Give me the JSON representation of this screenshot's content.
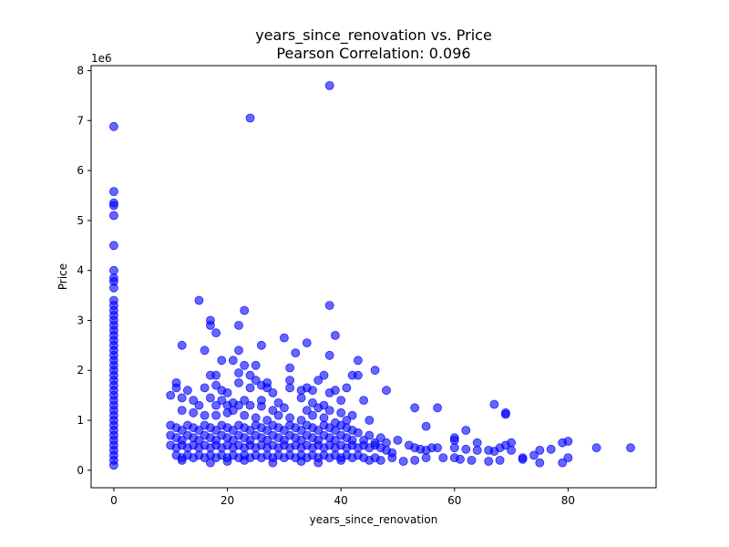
{
  "chart_data": {
    "type": "scatter",
    "title": "years_since_renovation vs. Price",
    "subtitle": "Pearson Correlation: 0.096",
    "xlabel": "years_since_renovation",
    "ylabel": "Price",
    "y_multiplier_label": "1e6",
    "xlim": [
      -4,
      95.5
    ],
    "ylim": [
      -0.35,
      8.1
    ],
    "x_ticks": [
      0,
      20,
      40,
      60,
      80
    ],
    "y_ticks": [
      0,
      1,
      2,
      3,
      4,
      5,
      6,
      7,
      8
    ],
    "grid": false,
    "legend": "none",
    "marker_color": "#0000ff",
    "marker_opacity": 0.6,
    "points": [
      [
        0,
        6.88
      ],
      [
        0,
        5.58
      ],
      [
        0,
        5.35
      ],
      [
        0,
        5.3
      ],
      [
        0,
        5.1
      ],
      [
        0,
        4.5
      ],
      [
        0,
        4.0
      ],
      [
        0,
        3.85
      ],
      [
        0,
        3.78
      ],
      [
        0,
        3.65
      ],
      [
        0,
        3.4
      ],
      [
        0,
        3.3
      ],
      [
        0,
        3.2
      ],
      [
        0,
        3.1
      ],
      [
        0,
        3.0
      ],
      [
        0,
        2.9
      ],
      [
        0,
        2.8
      ],
      [
        0,
        2.7
      ],
      [
        0,
        2.6
      ],
      [
        0,
        2.5
      ],
      [
        0,
        2.4
      ],
      [
        0,
        2.3
      ],
      [
        0,
        2.2
      ],
      [
        0,
        2.1
      ],
      [
        0,
        2.0
      ],
      [
        0,
        1.9
      ],
      [
        0,
        1.8
      ],
      [
        0,
        1.7
      ],
      [
        0,
        1.6
      ],
      [
        0,
        1.5
      ],
      [
        0,
        1.4
      ],
      [
        0,
        1.3
      ],
      [
        0,
        1.2
      ],
      [
        0,
        1.1
      ],
      [
        0,
        1.0
      ],
      [
        0,
        0.9
      ],
      [
        0,
        0.8
      ],
      [
        0,
        0.7
      ],
      [
        0,
        0.6
      ],
      [
        0,
        0.5
      ],
      [
        0,
        0.4
      ],
      [
        0,
        0.3
      ],
      [
        0,
        0.2
      ],
      [
        0,
        0.1
      ],
      [
        38,
        7.7
      ],
      [
        24,
        7.05
      ],
      [
        15,
        3.4
      ],
      [
        38,
        3.3
      ],
      [
        17,
        3.0
      ],
      [
        17,
        2.9
      ],
      [
        23,
        3.2
      ],
      [
        22,
        2.9
      ],
      [
        30,
        2.65
      ],
      [
        34,
        2.55
      ],
      [
        32,
        2.35
      ],
      [
        39,
        2.7
      ],
      [
        26,
        2.5
      ],
      [
        12,
        2.5
      ],
      [
        16,
        2.4
      ],
      [
        22,
        2.4
      ],
      [
        38,
        2.3
      ],
      [
        43,
        2.2
      ],
      [
        18,
        2.75
      ],
      [
        19,
        2.2
      ],
      [
        21,
        2.2
      ],
      [
        23,
        2.1
      ],
      [
        25,
        2.1
      ],
      [
        22,
        1.95
      ],
      [
        24,
        1.9
      ],
      [
        31,
        2.05
      ],
      [
        36,
        1.8
      ],
      [
        37,
        1.9
      ],
      [
        42,
        1.9
      ],
      [
        43,
        1.9
      ],
      [
        46,
        2.0
      ],
      [
        18,
        1.9
      ],
      [
        17,
        1.9
      ],
      [
        25,
        1.8
      ],
      [
        27,
        1.75
      ],
      [
        31,
        1.8
      ],
      [
        11,
        1.75
      ],
      [
        11,
        1.65
      ],
      [
        13,
        1.6
      ],
      [
        16,
        1.65
      ],
      [
        18,
        1.7
      ],
      [
        19,
        1.6
      ],
      [
        20,
        1.55
      ],
      [
        22,
        1.75
      ],
      [
        24,
        1.65
      ],
      [
        26,
        1.7
      ],
      [
        27,
        1.65
      ],
      [
        28,
        1.55
      ],
      [
        31,
        1.65
      ],
      [
        33,
        1.6
      ],
      [
        34,
        1.65
      ],
      [
        35,
        1.6
      ],
      [
        38,
        1.55
      ],
      [
        39,
        1.6
      ],
      [
        41,
        1.65
      ],
      [
        48,
        1.6
      ],
      [
        10,
        1.5
      ],
      [
        12,
        1.45
      ],
      [
        14,
        1.4
      ],
      [
        17,
        1.45
      ],
      [
        19,
        1.4
      ],
      [
        21,
        1.35
      ],
      [
        23,
        1.4
      ],
      [
        26,
        1.4
      ],
      [
        29,
        1.35
      ],
      [
        33,
        1.45
      ],
      [
        35,
        1.35
      ],
      [
        37,
        1.3
      ],
      [
        40,
        1.4
      ],
      [
        44,
        1.4
      ],
      [
        53,
        1.25
      ],
      [
        57,
        1.25
      ],
      [
        67,
        1.32
      ],
      [
        69,
        1.15
      ],
      [
        69,
        1.12
      ],
      [
        15,
        1.3
      ],
      [
        18,
        1.3
      ],
      [
        20,
        1.3
      ],
      [
        22,
        1.3
      ],
      [
        24,
        1.3
      ],
      [
        26,
        1.28
      ],
      [
        28,
        1.2
      ],
      [
        30,
        1.25
      ],
      [
        34,
        1.2
      ],
      [
        36,
        1.25
      ],
      [
        38,
        1.2
      ],
      [
        40,
        1.15
      ],
      [
        42,
        1.1
      ],
      [
        45,
        1.0
      ],
      [
        55,
        0.88
      ],
      [
        62,
        0.8
      ],
      [
        12,
        1.2
      ],
      [
        14,
        1.15
      ],
      [
        16,
        1.1
      ],
      [
        18,
        1.1
      ],
      [
        20,
        1.15
      ],
      [
        21,
        1.2
      ],
      [
        23,
        1.1
      ],
      [
        25,
        1.05
      ],
      [
        27,
        1.0
      ],
      [
        29,
        1.1
      ],
      [
        31,
        1.05
      ],
      [
        33,
        1.0
      ],
      [
        35,
        1.1
      ],
      [
        37,
        1.05
      ],
      [
        39,
        0.95
      ],
      [
        41,
        1.0
      ],
      [
        10,
        0.9
      ],
      [
        11,
        0.85
      ],
      [
        12,
        0.8
      ],
      [
        13,
        0.9
      ],
      [
        14,
        0.85
      ],
      [
        15,
        0.8
      ],
      [
        16,
        0.9
      ],
      [
        17,
        0.85
      ],
      [
        18,
        0.8
      ],
      [
        19,
        0.9
      ],
      [
        20,
        0.85
      ],
      [
        21,
        0.8
      ],
      [
        22,
        0.9
      ],
      [
        23,
        0.85
      ],
      [
        24,
        0.8
      ],
      [
        25,
        0.9
      ],
      [
        26,
        0.85
      ],
      [
        27,
        0.8
      ],
      [
        28,
        0.9
      ],
      [
        29,
        0.85
      ],
      [
        30,
        0.8
      ],
      [
        31,
        0.9
      ],
      [
        32,
        0.85
      ],
      [
        33,
        0.8
      ],
      [
        34,
        0.9
      ],
      [
        35,
        0.85
      ],
      [
        36,
        0.8
      ],
      [
        37,
        0.9
      ],
      [
        38,
        0.85
      ],
      [
        39,
        0.8
      ],
      [
        40,
        0.9
      ],
      [
        41,
        0.85
      ],
      [
        42,
        0.8
      ],
      [
        43,
        0.75
      ],
      [
        45,
        0.7
      ],
      [
        47,
        0.65
      ],
      [
        10,
        0.7
      ],
      [
        11,
        0.65
      ],
      [
        12,
        0.6
      ],
      [
        13,
        0.7
      ],
      [
        14,
        0.65
      ],
      [
        15,
        0.6
      ],
      [
        16,
        0.7
      ],
      [
        17,
        0.65
      ],
      [
        18,
        0.6
      ],
      [
        19,
        0.7
      ],
      [
        20,
        0.65
      ],
      [
        21,
        0.6
      ],
      [
        22,
        0.7
      ],
      [
        23,
        0.65
      ],
      [
        24,
        0.6
      ],
      [
        25,
        0.7
      ],
      [
        26,
        0.65
      ],
      [
        27,
        0.6
      ],
      [
        28,
        0.7
      ],
      [
        29,
        0.65
      ],
      [
        30,
        0.6
      ],
      [
        31,
        0.7
      ],
      [
        32,
        0.65
      ],
      [
        33,
        0.6
      ],
      [
        34,
        0.7
      ],
      [
        35,
        0.65
      ],
      [
        36,
        0.6
      ],
      [
        37,
        0.7
      ],
      [
        38,
        0.65
      ],
      [
        39,
        0.6
      ],
      [
        40,
        0.7
      ],
      [
        41,
        0.65
      ],
      [
        42,
        0.6
      ],
      [
        44,
        0.6
      ],
      [
        46,
        0.55
      ],
      [
        48,
        0.55
      ],
      [
        50,
        0.6
      ],
      [
        60,
        0.65
      ],
      [
        60,
        0.6
      ],
      [
        64,
        0.55
      ],
      [
        10,
        0.5
      ],
      [
        11,
        0.45
      ],
      [
        12,
        0.5
      ],
      [
        13,
        0.45
      ],
      [
        14,
        0.5
      ],
      [
        15,
        0.45
      ],
      [
        16,
        0.5
      ],
      [
        17,
        0.45
      ],
      [
        18,
        0.5
      ],
      [
        19,
        0.45
      ],
      [
        20,
        0.5
      ],
      [
        21,
        0.45
      ],
      [
        22,
        0.5
      ],
      [
        23,
        0.45
      ],
      [
        24,
        0.5
      ],
      [
        25,
        0.45
      ],
      [
        26,
        0.5
      ],
      [
        27,
        0.45
      ],
      [
        28,
        0.5
      ],
      [
        29,
        0.45
      ],
      [
        30,
        0.5
      ],
      [
        31,
        0.45
      ],
      [
        32,
        0.5
      ],
      [
        33,
        0.45
      ],
      [
        34,
        0.5
      ],
      [
        35,
        0.45
      ],
      [
        36,
        0.5
      ],
      [
        37,
        0.45
      ],
      [
        38,
        0.5
      ],
      [
        39,
        0.45
      ],
      [
        40,
        0.5
      ],
      [
        41,
        0.45
      ],
      [
        42,
        0.5
      ],
      [
        43,
        0.45
      ],
      [
        44,
        0.5
      ],
      [
        45,
        0.45
      ],
      [
        46,
        0.5
      ],
      [
        47,
        0.45
      ],
      [
        48,
        0.4
      ],
      [
        49,
        0.35
      ],
      [
        52,
        0.5
      ],
      [
        53,
        0.45
      ],
      [
        54,
        0.42
      ],
      [
        55,
        0.4
      ],
      [
        56,
        0.45
      ],
      [
        57,
        0.45
      ],
      [
        60,
        0.45
      ],
      [
        62,
        0.42
      ],
      [
        64,
        0.4
      ],
      [
        66,
        0.4
      ],
      [
        67,
        0.38
      ],
      [
        68,
        0.45
      ],
      [
        69,
        0.5
      ],
      [
        70,
        0.55
      ],
      [
        70,
        0.4
      ],
      [
        74,
        0.3
      ],
      [
        75,
        0.4
      ],
      [
        77,
        0.42
      ],
      [
        79,
        0.55
      ],
      [
        80,
        0.58
      ],
      [
        85,
        0.45
      ],
      [
        91,
        0.45
      ],
      [
        11,
        0.3
      ],
      [
        12,
        0.25
      ],
      [
        13,
        0.3
      ],
      [
        14,
        0.25
      ],
      [
        15,
        0.3
      ],
      [
        16,
        0.25
      ],
      [
        17,
        0.3
      ],
      [
        18,
        0.25
      ],
      [
        19,
        0.3
      ],
      [
        20,
        0.25
      ],
      [
        21,
        0.3
      ],
      [
        22,
        0.25
      ],
      [
        23,
        0.3
      ],
      [
        24,
        0.25
      ],
      [
        25,
        0.3
      ],
      [
        26,
        0.25
      ],
      [
        27,
        0.3
      ],
      [
        28,
        0.25
      ],
      [
        29,
        0.3
      ],
      [
        30,
        0.25
      ],
      [
        31,
        0.3
      ],
      [
        32,
        0.25
      ],
      [
        33,
        0.3
      ],
      [
        34,
        0.25
      ],
      [
        35,
        0.3
      ],
      [
        36,
        0.25
      ],
      [
        37,
        0.3
      ],
      [
        38,
        0.25
      ],
      [
        39,
        0.3
      ],
      [
        40,
        0.25
      ],
      [
        41,
        0.3
      ],
      [
        42,
        0.25
      ],
      [
        43,
        0.3
      ],
      [
        44,
        0.25
      ],
      [
        45,
        0.2
      ],
      [
        46,
        0.25
      ],
      [
        47,
        0.2
      ],
      [
        49,
        0.25
      ],
      [
        51,
        0.18
      ],
      [
        53,
        0.2
      ],
      [
        55,
        0.25
      ],
      [
        58,
        0.25
      ],
      [
        60,
        0.25
      ],
      [
        61,
        0.22
      ],
      [
        63,
        0.2
      ],
      [
        66,
        0.18
      ],
      [
        68,
        0.2
      ],
      [
        72,
        0.25
      ],
      [
        72,
        0.22
      ],
      [
        75,
        0.15
      ],
      [
        79,
        0.15
      ],
      [
        80,
        0.25
      ],
      [
        12,
        0.2
      ],
      [
        17,
        0.15
      ],
      [
        20,
        0.18
      ],
      [
        23,
        0.2
      ],
      [
        28,
        0.15
      ],
      [
        33,
        0.18
      ],
      [
        36,
        0.15
      ],
      [
        40,
        0.2
      ]
    ]
  }
}
